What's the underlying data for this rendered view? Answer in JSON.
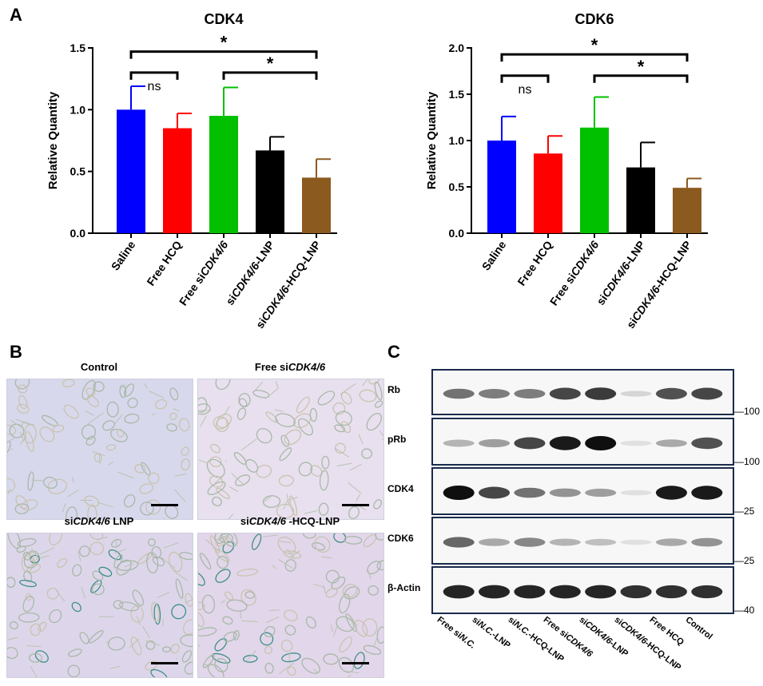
{
  "panels": {
    "A": "A",
    "B": "B",
    "C": "C"
  },
  "chart_data": [
    {
      "type": "bar",
      "title": "CDK4",
      "ylabel": "Relative Quantity",
      "xlabel": "",
      "ylim": [
        0,
        1.5
      ],
      "yticks": [
        "0.0",
        "0.5",
        "1.0",
        "1.5"
      ],
      "categories": [
        "Saline",
        "Free HCQ",
        "Free siCDK4/6",
        "siCDK4/6-LNP",
        "siCDK4/6-HCQ-LNP"
      ],
      "category_parts": [
        [
          "Saline",
          "",
          ""
        ],
        [
          "Free HCQ",
          "",
          ""
        ],
        [
          "Free si",
          "CDK4/6",
          ""
        ],
        [
          "si",
          "CDK4/6",
          "-LNP"
        ],
        [
          "si",
          "CDK4/6",
          "-HCQ-LNP"
        ]
      ],
      "values": [
        1.0,
        0.85,
        0.95,
        0.67,
        0.45
      ],
      "errors": [
        0.19,
        0.12,
        0.23,
        0.11,
        0.15
      ],
      "colors": [
        "#0000ff",
        "#ff0000",
        "#00c000",
        "#000000",
        "#8b5a1e"
      ],
      "annotations": [
        {
          "from": 0,
          "to": 4,
          "text": "*",
          "level": 1.47
        },
        {
          "from": 0,
          "to": 1,
          "text": "ns",
          "level": 1.3
        },
        {
          "from": 2,
          "to": 4,
          "text": "*",
          "level": 1.3
        }
      ]
    },
    {
      "type": "bar",
      "title": "CDK6",
      "ylabel": "Relative Quantity",
      "xlabel": "",
      "ylim": [
        0,
        2.0
      ],
      "yticks": [
        "0.0",
        "0.5",
        "1.0",
        "1.5",
        "2.0"
      ],
      "categories": [
        "Saline",
        "Free HCQ",
        "Free siCDK4/6",
        "siCDK4/6-LNP",
        "siCDK4/6-HCQ-LNP"
      ],
      "category_parts": [
        [
          "Saline",
          "",
          ""
        ],
        [
          "Free HCQ",
          "",
          ""
        ],
        [
          "Free si",
          "CDK4/6",
          ""
        ],
        [
          "si",
          "CDK4/6",
          "-LNP"
        ],
        [
          "si",
          "CDK4/6",
          "-HCQ-LNP"
        ]
      ],
      "values": [
        1.0,
        0.86,
        1.14,
        0.71,
        0.49
      ],
      "errors": [
        0.26,
        0.19,
        0.33,
        0.27,
        0.1
      ],
      "colors": [
        "#0000ff",
        "#ff0000",
        "#00c000",
        "#000000",
        "#8b5a1e"
      ],
      "annotations": [
        {
          "from": 0,
          "to": 4,
          "text": "*",
          "level": 1.93
        },
        {
          "from": 0,
          "to": 1,
          "text": "ns",
          "level": 1.7
        },
        {
          "from": 2,
          "to": 4,
          "text": "*",
          "level": 1.7
        }
      ]
    }
  ],
  "micrographs": [
    {
      "label_parts": [
        "Control",
        "",
        ""
      ]
    },
    {
      "label_parts": [
        "Free si",
        "CDK4/6",
        ""
      ]
    },
    {
      "label_parts": [
        "si",
        "CDK4/6",
        " LNP"
      ]
    },
    {
      "label_parts": [
        "si",
        "CDK4/6",
        " -HCQ-LNP"
      ]
    }
  ],
  "blots": {
    "rows": [
      {
        "label": "Rb",
        "mw": "100",
        "intensity": [
          0.55,
          0.5,
          0.5,
          0.75,
          0.8,
          0.1,
          0.7,
          0.75
        ]
      },
      {
        "label": "pRb",
        "mw": "100",
        "intensity": [
          0.25,
          0.35,
          0.75,
          0.95,
          1.0,
          0.05,
          0.3,
          0.7
        ]
      },
      {
        "label": "CDK4",
        "mw": "25",
        "intensity": [
          1.0,
          0.75,
          0.55,
          0.4,
          0.35,
          0.05,
          0.95,
          0.95
        ]
      },
      {
        "label": "CDK6",
        "mw": "25",
        "intensity": [
          0.6,
          0.3,
          0.45,
          0.25,
          0.2,
          0.05,
          0.3,
          0.4
        ]
      },
      {
        "label": "β-Actin",
        "mw": "40",
        "intensity": [
          0.9,
          0.9,
          0.9,
          0.9,
          0.9,
          0.85,
          0.85,
          0.85
        ]
      }
    ],
    "lanes": [
      [
        "Free si",
        "N.C.",
        ""
      ],
      [
        "si",
        "N.C.",
        "-LNP"
      ],
      [
        "si",
        "N.C.",
        "-HCQ-LNP"
      ],
      [
        "Free si",
        "CDK4/6",
        ""
      ],
      [
        "si",
        "CDK4/6",
        "-LNP"
      ],
      [
        "si",
        "CDK4/6",
        "-HCQ-LNP"
      ],
      [
        "Free HCQ",
        "",
        ""
      ],
      [
        "Control",
        "",
        ""
      ]
    ]
  }
}
